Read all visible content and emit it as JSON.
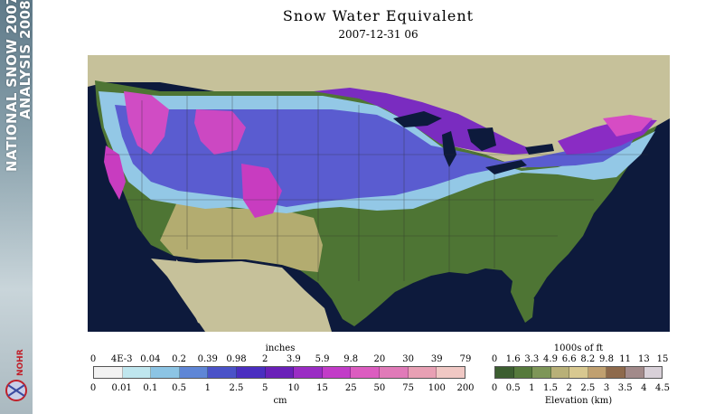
{
  "banner": {
    "line1": "NATIONAL SNOW",
    "line2": "ANALYSIS",
    "year_top": "2007-",
    "year_bottom": "2008",
    "logo_text": "NOHRSC"
  },
  "title": "Snow Water Equivalent",
  "subtitle": "2007-12-31 06",
  "swe_legend": {
    "top_label": "inches",
    "bottom_label": "cm",
    "inch_ticks": [
      "0",
      "4E-3",
      "0.04",
      "0.2",
      "0.39",
      "0.98",
      "2",
      "3.9",
      "5.9",
      "9.8",
      "20",
      "30",
      "39",
      "79"
    ],
    "cm_ticks": [
      "0",
      "0.01",
      "0.1",
      "0.5",
      "1",
      "2.5",
      "5",
      "10",
      "15",
      "25",
      "50",
      "75",
      "100",
      "200"
    ],
    "colors": [
      "#f2f2f2",
      "#bfe6ee",
      "#8cc4e4",
      "#5f86d6",
      "#4a52c8",
      "#4a2ec0",
      "#6a20b8",
      "#9a2cc4",
      "#c23cc8",
      "#dc5cc0",
      "#e07ab8",
      "#e8a0b4",
      "#f0c8c4"
    ]
  },
  "elev_legend": {
    "top_label": "1000s of ft",
    "bottom_label": "Elevation (km)",
    "ft_ticks": [
      "0",
      "1.6",
      "3.3",
      "4.9",
      "6.6",
      "8.2",
      "9.8",
      "11",
      "13",
      "15"
    ],
    "km_ticks": [
      "0",
      "0.5",
      "1",
      "1.5",
      "2",
      "2.5",
      "3",
      "3.5",
      "4",
      "4.5"
    ],
    "colors": [
      "#3c5e30",
      "#567a3c",
      "#7e9658",
      "#b8b078",
      "#d8c890",
      "#c0a070",
      "#8e6a4c",
      "#a28a8a",
      "#d8d0d8"
    ]
  },
  "map_colors": {
    "ocean": "#0d1a3c",
    "land_outside": "#c6c19a",
    "lakes": "#0d1a3c"
  }
}
